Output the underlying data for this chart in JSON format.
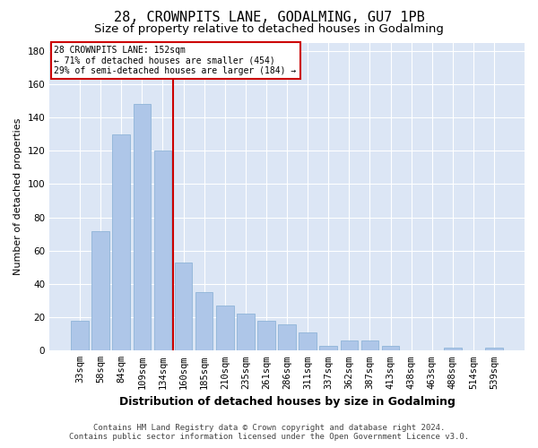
{
  "title1": "28, CROWNPITS LANE, GODALMING, GU7 1PB",
  "title2": "Size of property relative to detached houses in Godalming",
  "xlabel": "Distribution of detached houses by size in Godalming",
  "ylabel": "Number of detached properties",
  "categories": [
    "33sqm",
    "58sqm",
    "84sqm",
    "109sqm",
    "134sqm",
    "160sqm",
    "185sqm",
    "210sqm",
    "235sqm",
    "261sqm",
    "286sqm",
    "311sqm",
    "337sqm",
    "362sqm",
    "387sqm",
    "413sqm",
    "438sqm",
    "463sqm",
    "488sqm",
    "514sqm",
    "539sqm"
  ],
  "values": [
    18,
    72,
    130,
    148,
    120,
    53,
    35,
    27,
    22,
    18,
    16,
    11,
    3,
    6,
    6,
    3,
    0,
    0,
    2,
    0,
    2
  ],
  "bar_color": "#aec6e8",
  "bar_edge_color": "#8fb4d8",
  "vline_x": 4.5,
  "vline_color": "#cc0000",
  "ylim": [
    0,
    185
  ],
  "yticks": [
    0,
    20,
    40,
    60,
    80,
    100,
    120,
    140,
    160,
    180
  ],
  "annotation_title": "28 CROWNPITS LANE: 152sqm",
  "annotation_line1": "← 71% of detached houses are smaller (454)",
  "annotation_line2": "29% of semi-detached houses are larger (184) →",
  "annotation_box_color": "#ffffff",
  "annotation_box_edge": "#cc0000",
  "fig_bg_color": "#ffffff",
  "plot_bg_color": "#dce6f5",
  "grid_color": "#ffffff",
  "footer1": "Contains HM Land Registry data © Crown copyright and database right 2024.",
  "footer2": "Contains public sector information licensed under the Open Government Licence v3.0.",
  "title1_fontsize": 11,
  "title2_fontsize": 9.5,
  "xlabel_fontsize": 9,
  "ylabel_fontsize": 8,
  "tick_fontsize": 7.5,
  "footer_fontsize": 6.5
}
